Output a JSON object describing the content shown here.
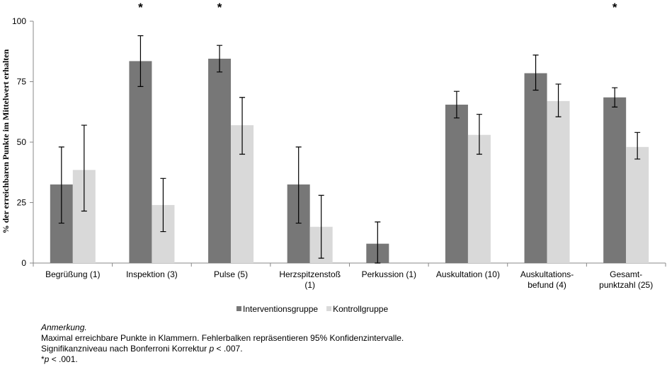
{
  "chart_data": {
    "type": "bar",
    "y_label": "% der erreichbaren Punkte im Mittelwert erhalten",
    "categories": [
      "Begrüßung (1)",
      "Inspektion (3)",
      "Pulse (5)",
      "Herzspitzenstoß\n(1)",
      "Perkussion (1)",
      "Auskultation    (10)",
      "Auskultations-\nbefund (4)",
      "Gesamt-\npunktzahl (25)"
    ],
    "series": [
      {
        "name": "Interventionsgruppe",
        "color": "#777777",
        "values": [
          32.5,
          83.5,
          84.5,
          32.5,
          8,
          65.5,
          78.5,
          68.5
        ],
        "ci_low": [
          16.5,
          73,
          79,
          16.5,
          0,
          60,
          71.5,
          64.5
        ],
        "ci_high": [
          48,
          94,
          90,
          48,
          17,
          71,
          86,
          72.5
        ]
      },
      {
        "name": "Kontrollgruppe",
        "color": "#d9d9d9",
        "values": [
          38.5,
          24,
          57,
          15,
          null,
          53,
          67,
          48
        ],
        "ci_low": [
          21.5,
          13,
          45,
          2,
          null,
          45,
          60.5,
          43
        ],
        "ci_high": [
          57,
          35,
          68.5,
          28,
          null,
          61.5,
          74,
          54
        ]
      }
    ],
    "markers": [
      null,
      "*",
      "*",
      null,
      null,
      null,
      null,
      "*"
    ],
    "ylim": [
      0,
      100
    ],
    "yticks": [
      0,
      25,
      50,
      75,
      100
    ],
    "legend": "bottom"
  },
  "notes": {
    "title": "Anmerkung.",
    "lines": [
      [
        {
          "text": "Maximal erreichbare Punkte in Klammern. Fehlerbalken repräsentieren 95% Konfidenzintervalle.",
          "italic": false
        }
      ],
      [
        {
          "text": "Signifikanzniveau nach Bonferroni Korrektur ",
          "italic": false
        },
        {
          "text": "p",
          "italic": true
        },
        {
          "text": " < .007.",
          "italic": false
        }
      ],
      [
        {
          "text": "*",
          "italic": false
        },
        {
          "text": "p",
          "italic": true
        },
        {
          "text": " < .001.",
          "italic": false
        }
      ]
    ]
  }
}
